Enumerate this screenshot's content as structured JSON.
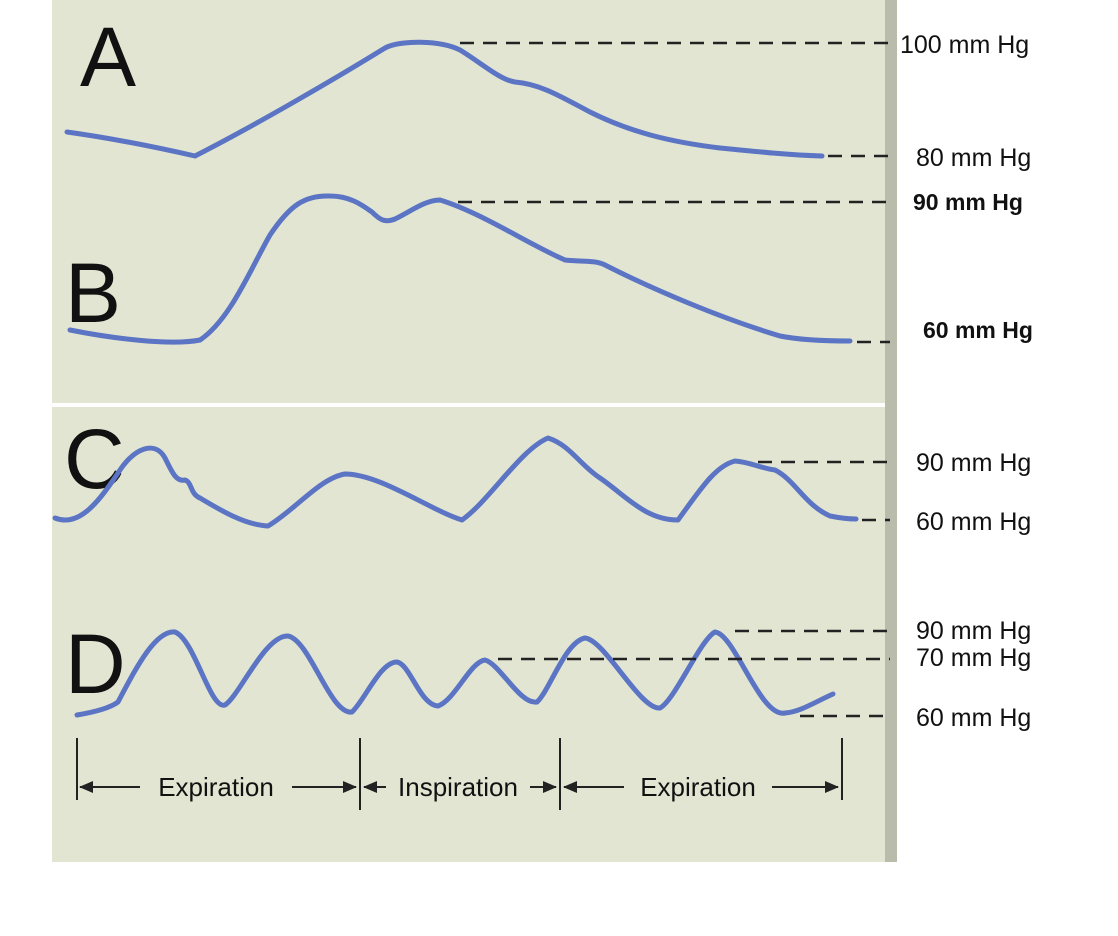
{
  "panels": [
    {
      "letter": "A",
      "labels": [
        "100 mm Hg",
        "80 mm Hg"
      ]
    },
    {
      "letter": "B",
      "labels": [
        "90 mm Hg",
        "60 mm Hg"
      ]
    },
    {
      "letter": "C",
      "labels": [
        "90 mm Hg",
        "60 mm Hg"
      ]
    },
    {
      "letter": "D",
      "labels": [
        "90 mm Hg",
        "70 mm Hg",
        "60 mm Hg"
      ]
    }
  ],
  "phases": [
    "Expiration",
    "Inspiration",
    "Expiration"
  ],
  "colors": {
    "background": "#e2e5d2",
    "trace": "#5b74c4",
    "side_bar": "#b9bbab"
  }
}
